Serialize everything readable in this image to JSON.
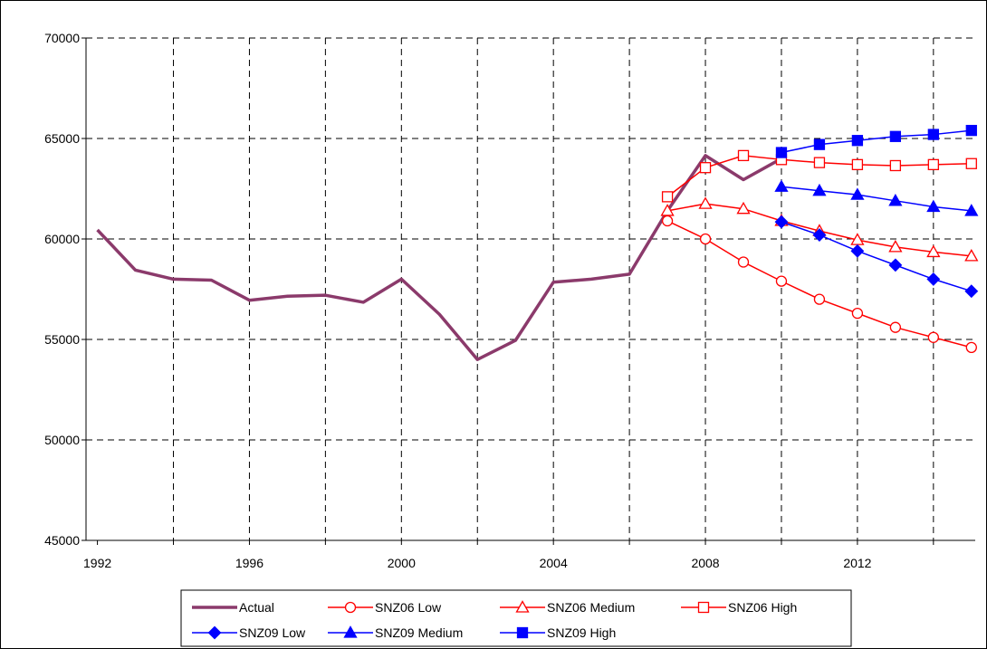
{
  "chart_data": {
    "type": "line",
    "title": "",
    "xlabel": "",
    "ylabel": "",
    "xlim": [
      1991.7,
      2015.1
    ],
    "ylim": [
      45000,
      70000
    ],
    "x_ticks": [
      1992,
      1996,
      2000,
      2004,
      2008,
      2012
    ],
    "y_ticks": [
      45000,
      50000,
      55000,
      60000,
      65000,
      70000
    ],
    "grid": true,
    "legend_position": "bottom",
    "series": [
      {
        "name": "Actual",
        "color": "#8b3a6b",
        "marker": "none",
        "points": [
          [
            1992,
            60450
          ],
          [
            1993,
            58450
          ],
          [
            1994,
            58000
          ],
          [
            1995,
            57950
          ],
          [
            1996,
            56950
          ],
          [
            1997,
            57150
          ],
          [
            1998,
            57200
          ],
          [
            1999,
            56850
          ],
          [
            2000,
            58000
          ],
          [
            2001,
            56250
          ],
          [
            2002,
            54000
          ],
          [
            2003,
            54950
          ],
          [
            2004,
            57850
          ],
          [
            2005,
            58000
          ],
          [
            2006,
            58250
          ],
          [
            2007,
            61400
          ],
          [
            2008,
            64150
          ],
          [
            2009,
            62950
          ],
          [
            2010,
            64000
          ]
        ]
      },
      {
        "name": "SNZ06 Low",
        "color": "#ff0000",
        "marker": "circle-open",
        "points": [
          [
            2007,
            60900
          ],
          [
            2008,
            60000
          ],
          [
            2009,
            58850
          ],
          [
            2010,
            57900
          ],
          [
            2011,
            57000
          ],
          [
            2012,
            56300
          ],
          [
            2013,
            55600
          ],
          [
            2014,
            55100
          ],
          [
            2015,
            54600
          ]
        ]
      },
      {
        "name": "SNZ06 Medium",
        "color": "#ff0000",
        "marker": "triangle-open",
        "points": [
          [
            2007,
            61400
          ],
          [
            2008,
            61750
          ],
          [
            2009,
            61500
          ],
          [
            2010,
            60900
          ],
          [
            2011,
            60400
          ],
          [
            2012,
            59950
          ],
          [
            2013,
            59600
          ],
          [
            2014,
            59350
          ],
          [
            2015,
            59150
          ]
        ]
      },
      {
        "name": "SNZ06 High",
        "color": "#ff0000",
        "marker": "square-open",
        "points": [
          [
            2007,
            62100
          ],
          [
            2008,
            63550
          ],
          [
            2009,
            64150
          ],
          [
            2010,
            63950
          ],
          [
            2011,
            63800
          ],
          [
            2012,
            63700
          ],
          [
            2013,
            63650
          ],
          [
            2014,
            63700
          ],
          [
            2015,
            63750
          ]
        ]
      },
      {
        "name": "SNZ09 Low",
        "color": "#0000ff",
        "marker": "diamond-filled",
        "points": [
          [
            2010,
            60850
          ],
          [
            2011,
            60200
          ],
          [
            2012,
            59400
          ],
          [
            2013,
            58700
          ],
          [
            2014,
            58000
          ],
          [
            2015,
            57400
          ]
        ]
      },
      {
        "name": "SNZ09 Medium",
        "color": "#0000ff",
        "marker": "triangle-filled",
        "points": [
          [
            2010,
            62600
          ],
          [
            2011,
            62400
          ],
          [
            2012,
            62200
          ],
          [
            2013,
            61900
          ],
          [
            2014,
            61600
          ],
          [
            2015,
            61400
          ]
        ]
      },
      {
        "name": "SNZ09 High",
        "color": "#0000ff",
        "marker": "square-filled",
        "points": [
          [
            2010,
            64300
          ],
          [
            2011,
            64700
          ],
          [
            2012,
            64900
          ],
          [
            2013,
            65100
          ],
          [
            2014,
            65200
          ],
          [
            2015,
            65400
          ]
        ]
      }
    ]
  }
}
